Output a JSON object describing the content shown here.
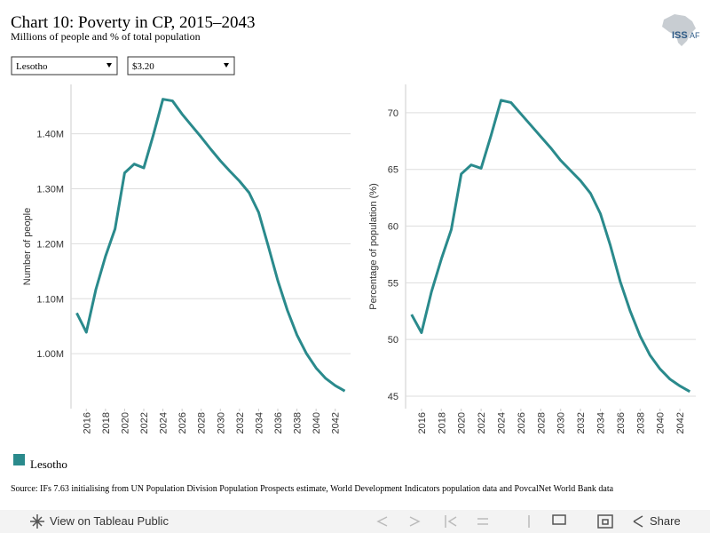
{
  "header": {
    "title": "Chart 10: Poverty in CP, 2015–2043",
    "subtitle": "Millions of people and % of total population",
    "logo": [
      "ISS",
      "AF"
    ]
  },
  "controls": {
    "country": "Lesotho",
    "threshold": "$3.20"
  },
  "chart_data": [
    {
      "type": "line",
      "ylabel": "Number of people",
      "x": [
        2015,
        2016,
        2017,
        2018,
        2019,
        2020,
        2021,
        2022,
        2023,
        2024,
        2025,
        2026,
        2027,
        2028,
        2029,
        2030,
        2031,
        2032,
        2033,
        2034,
        2035,
        2036,
        2037,
        2038,
        2039,
        2040,
        2041,
        2042,
        2043
      ],
      "series": [
        {
          "name": "Lesotho",
          "color": "#2a8a8c",
          "values": [
            1.074,
            1.039,
            1.117,
            1.177,
            1.227,
            1.329,
            1.345,
            1.338,
            1.398,
            1.463,
            1.46,
            1.436,
            1.415,
            1.394,
            1.372,
            1.351,
            1.332,
            1.314,
            1.293,
            1.257,
            1.196,
            1.133,
            1.079,
            1.034,
            1.0,
            0.974,
            0.955,
            0.942,
            0.932
          ]
        }
      ],
      "xlim": [
        2014.4,
        2043.6
      ],
      "xticks": [
        2016,
        2018,
        2020,
        2022,
        2024,
        2026,
        2028,
        2030,
        2032,
        2034,
        2036,
        2038,
        2040,
        2042
      ],
      "ylim": [
        0.9,
        1.49
      ],
      "yticks": [
        {
          "value": 1.0,
          "label": "1.00M"
        },
        {
          "value": 1.1,
          "label": "1.10M"
        },
        {
          "value": 1.2,
          "label": "1.20M"
        },
        {
          "value": 1.3,
          "label": "1.30M"
        },
        {
          "value": 1.4,
          "label": "1.40M"
        }
      ],
      "grid": true
    },
    {
      "type": "line",
      "ylabel": "Percentage of population (%)",
      "x": [
        2015,
        2016,
        2017,
        2018,
        2019,
        2020,
        2021,
        2022,
        2023,
        2024,
        2025,
        2026,
        2027,
        2028,
        2029,
        2030,
        2031,
        2032,
        2033,
        2034,
        2035,
        2036,
        2037,
        2038,
        2039,
        2040,
        2041,
        2042,
        2043
      ],
      "series": [
        {
          "name": "Lesotho",
          "color": "#2a8a8c",
          "values": [
            52.2,
            50.6,
            54.2,
            57.1,
            59.7,
            64.6,
            65.4,
            65.1,
            68.0,
            71.1,
            70.9,
            69.9,
            68.9,
            67.9,
            66.9,
            65.8,
            64.9,
            64.0,
            62.9,
            61.1,
            58.3,
            55.1,
            52.5,
            50.3,
            48.6,
            47.4,
            46.5,
            45.9,
            45.4
          ]
        }
      ],
      "xlim": [
        2014.4,
        2043.6
      ],
      "xticks": [
        2016,
        2018,
        2020,
        2022,
        2024,
        2026,
        2028,
        2030,
        2032,
        2034,
        2036,
        2038,
        2040,
        2042
      ],
      "ylim": [
        43.9,
        72.5
      ],
      "yticks": [
        45,
        50,
        55,
        60,
        65,
        70
      ],
      "grid": true
    }
  ],
  "source": "Source: IFs 7.63 initialising from UN Population Division Population Prospects estimate, World Development Indicators population data and PovcalNet World Bank data",
  "toolbar": {
    "view": "View on Tableau Public",
    "share": "Share"
  }
}
